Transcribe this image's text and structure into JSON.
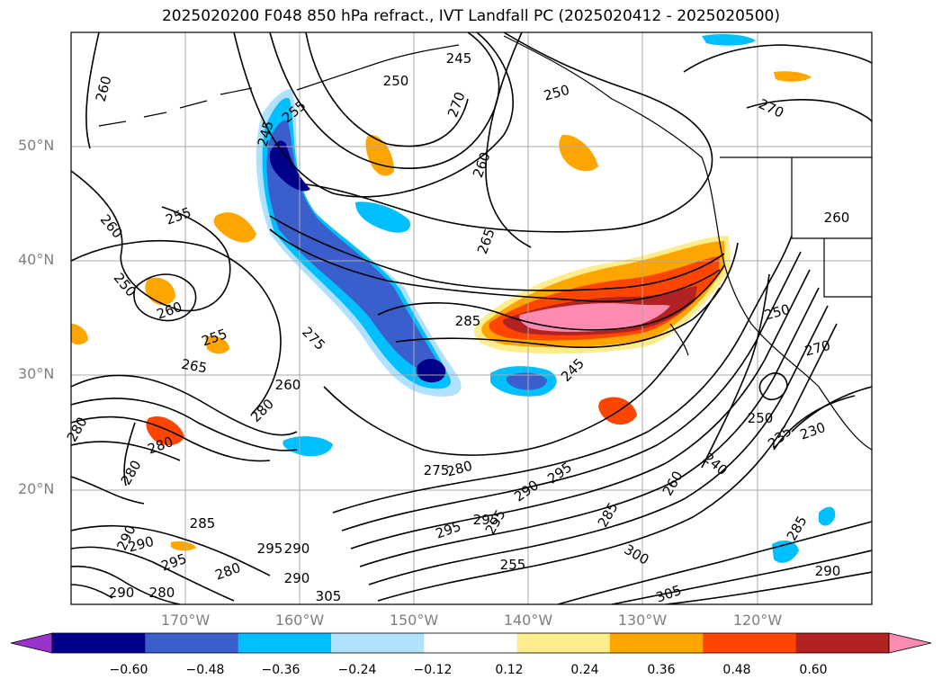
{
  "title": "2025020200 F048 850 hPa refract., IVT Landfall PC (2025020412 - 2025020500)",
  "map": {
    "lat_labels": [
      "50°N",
      "40°N",
      "30°N",
      "20°N"
    ],
    "lon_labels": [
      "170°W",
      "160°W",
      "150°W",
      "140°W",
      "130°W",
      "120°W"
    ],
    "contour_labels": [
      "260",
      "245",
      "250",
      "255",
      "270",
      "245",
      "250",
      "260",
      "265",
      "270",
      "260",
      "255",
      "250",
      "260",
      "255",
      "265",
      "275",
      "285",
      "245",
      "250",
      "270",
      "260",
      "280",
      "280",
      "280",
      "275",
      "280",
      "295",
      "290",
      "290",
      "285",
      "290",
      "295",
      "280",
      "290",
      "295",
      "285",
      "295",
      "290",
      "300",
      "290",
      "305",
      "255",
      "305",
      "240",
      "260",
      "250",
      "235",
      "230",
      "285",
      "280",
      "255",
      "290",
      "295",
      "260",
      "280"
    ]
  },
  "colorbar": {
    "ticks": [
      "−0.60",
      "−0.48",
      "−0.36",
      "−0.24",
      "−0.12",
      "0.12",
      "0.24",
      "0.36",
      "0.48",
      "0.60"
    ],
    "colors": [
      "#9933cc",
      "#00008b",
      "#3a5fcd",
      "#00bfff",
      "#b0e2ff",
      "#ffffff",
      "#ffec8b",
      "#ffa500",
      "#ff4500",
      "#b22222",
      "#ff8cb0"
    ]
  },
  "colors": {
    "contour": "#000000",
    "gridline": "#a9a9a9",
    "coast": "#000000"
  }
}
